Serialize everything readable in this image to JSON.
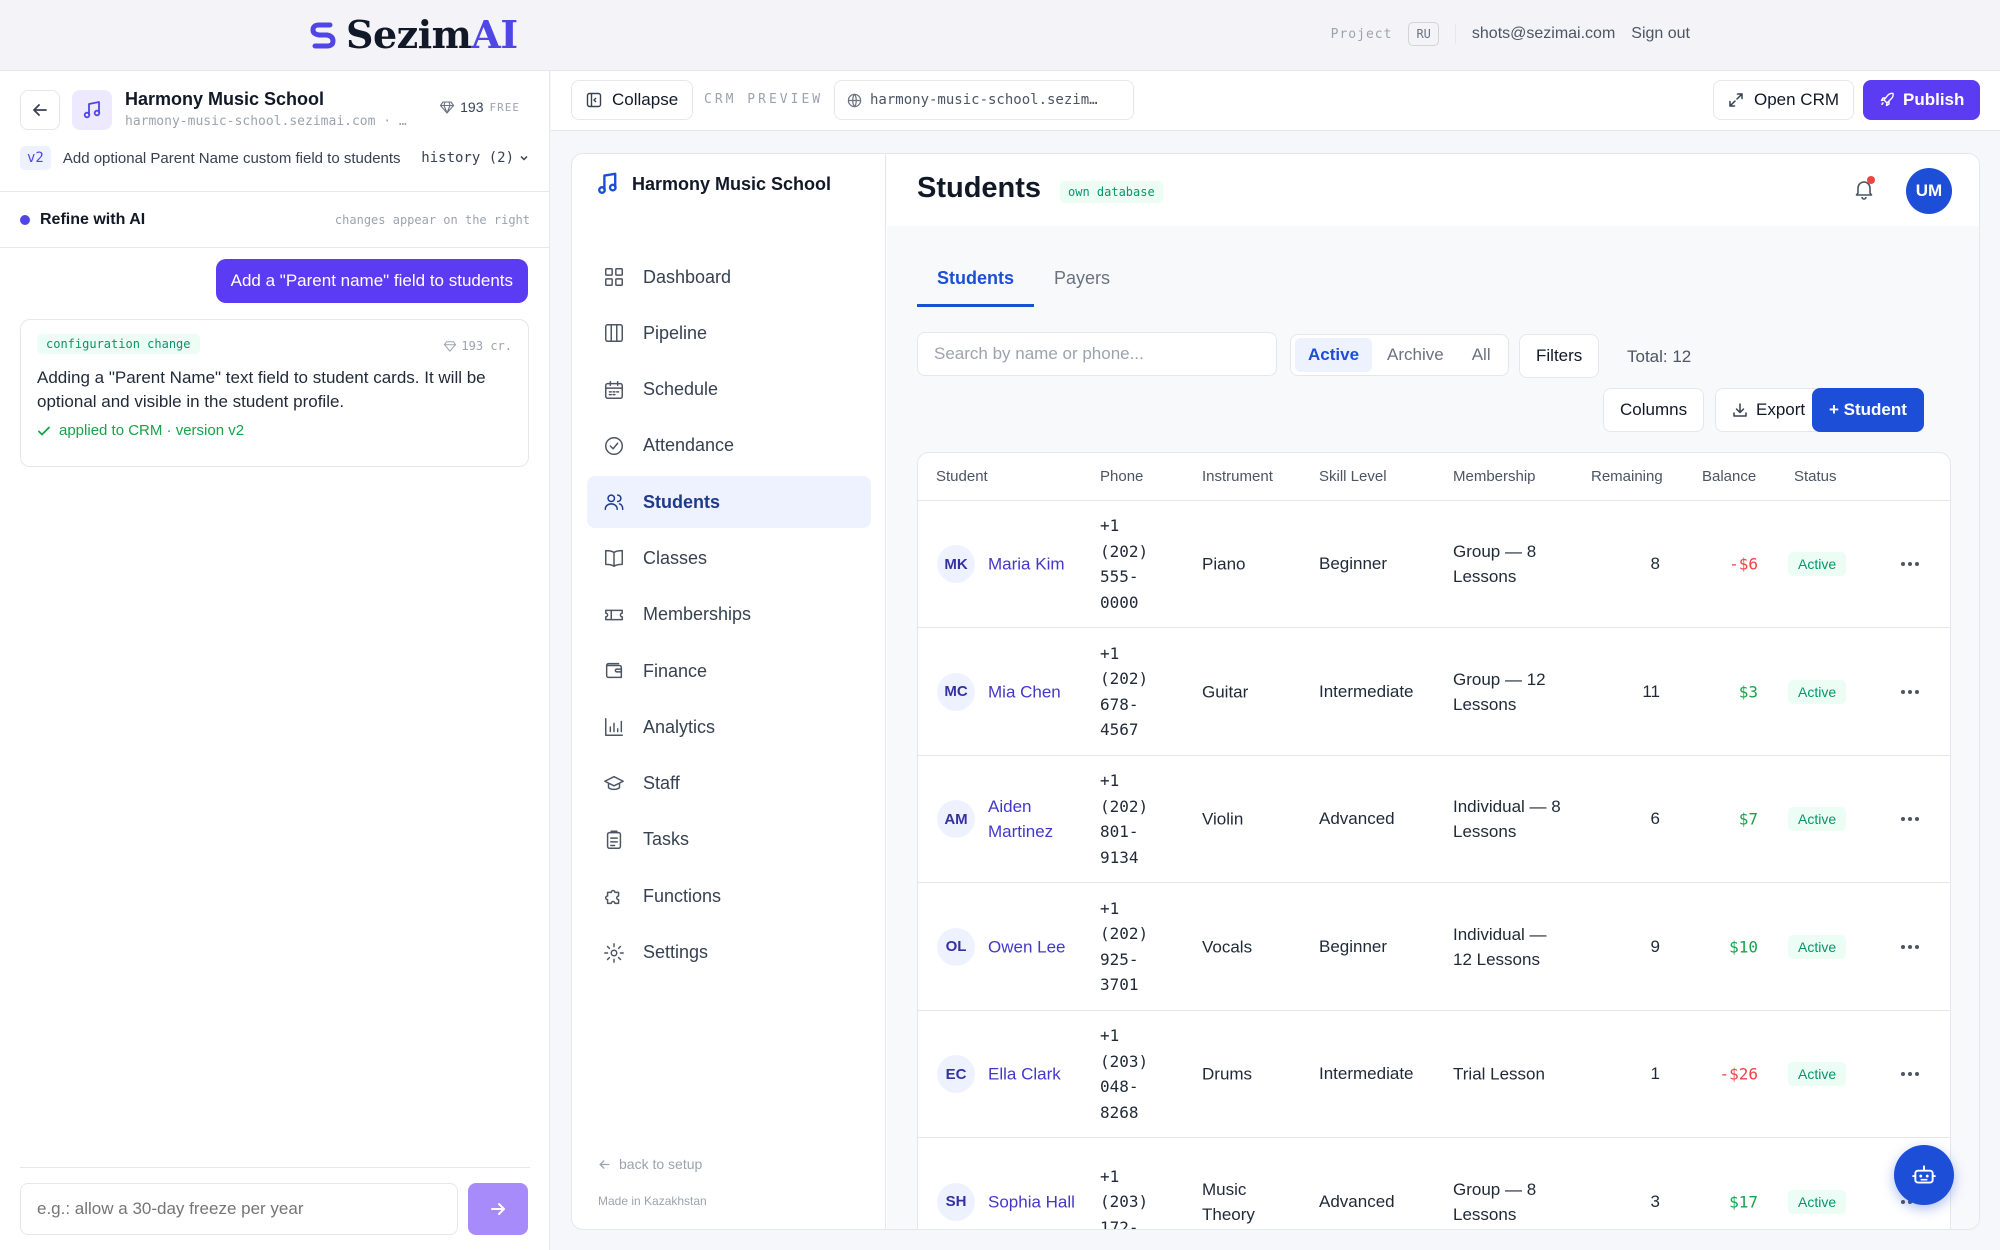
{
  "brand": {
    "name_prefix": "Sezim",
    "name_suffix": "AI"
  },
  "topbar": {
    "project_label": "Project",
    "lang": "RU",
    "email": "shots@sezimai.com",
    "sign_out": "Sign out"
  },
  "project": {
    "name": "Harmony Music School",
    "url": "harmony-music-school.sezimai.com · …",
    "credits": "193",
    "plan": "FREE"
  },
  "version": {
    "badge": "v2",
    "description": "Add optional Parent Name custom field to students",
    "history": "history (2)"
  },
  "refine": {
    "title": "Refine with AI",
    "hint": "changes appear on the right"
  },
  "chat": {
    "user_message": "Add a \"Parent name\" field to students",
    "ai_card": {
      "badge": "configuration change",
      "credits": "193 cr.",
      "text": "Adding a \"Parent Name\" text field to student cards. It will be optional and visible in the student profile.",
      "applied": "applied to CRM · version v2"
    },
    "composer_placeholder": "e.g.: allow a 30-day freeze per year"
  },
  "preview": {
    "collapse": "Collapse",
    "label": "CRM PREVIEW",
    "url": "harmony-music-school.sezim…",
    "open_crm": "Open CRM",
    "publish": "Publish"
  },
  "crm": {
    "brand": "Harmony Music School",
    "nav": [
      {
        "label": "Dashboard",
        "icon": "grid-icon"
      },
      {
        "label": "Pipeline",
        "icon": "columns-icon"
      },
      {
        "label": "Schedule",
        "icon": "calendar-icon"
      },
      {
        "label": "Attendance",
        "icon": "check-circle-icon"
      },
      {
        "label": "Students",
        "icon": "users-icon",
        "active": true
      },
      {
        "label": "Classes",
        "icon": "book-icon"
      },
      {
        "label": "Memberships",
        "icon": "ticket-icon"
      },
      {
        "label": "Finance",
        "icon": "wallet-icon"
      },
      {
        "label": "Analytics",
        "icon": "bar-chart-icon"
      },
      {
        "label": "Staff",
        "icon": "graduation-cap-icon"
      },
      {
        "label": "Tasks",
        "icon": "clipboard-icon"
      },
      {
        "label": "Functions",
        "icon": "puzzle-icon"
      },
      {
        "label": "Settings",
        "icon": "gear-icon"
      }
    ],
    "back_to_setup": "back to setup",
    "made_in": "Made in Kazakhstan",
    "page_title": "Students",
    "db_badge": "own database",
    "user_initials": "UM",
    "tabs": [
      "Students",
      "Payers"
    ],
    "search_placeholder": "Search by name or phone...",
    "filter_segments": [
      "Active",
      "Archive",
      "All"
    ],
    "filters_btn": "Filters",
    "total": "Total: 12",
    "columns_btn": "Columns",
    "export_btn": "Export",
    "add_btn": "+ Student",
    "table": {
      "headers": [
        "Student",
        "Phone",
        "Instrument",
        "Skill Level",
        "Membership",
        "Remaining",
        "Balance",
        "Status"
      ],
      "rows": [
        {
          "initials": "MK",
          "name": "Maria Kim",
          "phone": "+1 (202) 555-0000",
          "instrument": "Piano",
          "skill": "Beginner",
          "membership": "Group — 8 Lessons",
          "remaining": "8",
          "balance": "-$6",
          "balance_sign": "neg",
          "status": "Active"
        },
        {
          "initials": "MC",
          "name": "Mia Chen",
          "phone": "+1 (202) 678-4567",
          "instrument": "Guitar",
          "skill": "Intermediate",
          "membership": "Group — 12 Lessons",
          "remaining": "11",
          "balance": "$3",
          "balance_sign": "pos",
          "status": "Active"
        },
        {
          "initials": "AM",
          "name": "Aiden Martinez",
          "phone": "+1 (202) 801-9134",
          "instrument": "Violin",
          "skill": "Advanced",
          "membership": "Individual — 8 Lessons",
          "remaining": "6",
          "balance": "$7",
          "balance_sign": "pos",
          "status": "Active"
        },
        {
          "initials": "OL",
          "name": "Owen Lee",
          "phone": "+1 (202) 925-3701",
          "instrument": "Vocals",
          "skill": "Beginner",
          "membership": "Individual — 12 Lessons",
          "remaining": "9",
          "balance": "$10",
          "balance_sign": "pos",
          "status": "Active"
        },
        {
          "initials": "EC",
          "name": "Ella Clark",
          "phone": "+1 (203) 048-8268",
          "instrument": "Drums",
          "skill": "Intermediate",
          "membership": "Trial Lesson",
          "remaining": "1",
          "balance": "-$26",
          "balance_sign": "neg",
          "status": "Active"
        },
        {
          "initials": "SH",
          "name": "Sophia Hall",
          "phone": "+1 (203) 172-",
          "instrument": "Music Theory",
          "skill": "Advanced",
          "membership": "Group — 8 Lessons",
          "remaining": "3",
          "balance": "$17",
          "balance_sign": "pos",
          "status": "Active"
        }
      ]
    }
  },
  "colors": {
    "accent": "#5b3cf2",
    "crm_primary": "#1d4ed8",
    "positive": "#16a34a",
    "negative": "#ef4444"
  }
}
